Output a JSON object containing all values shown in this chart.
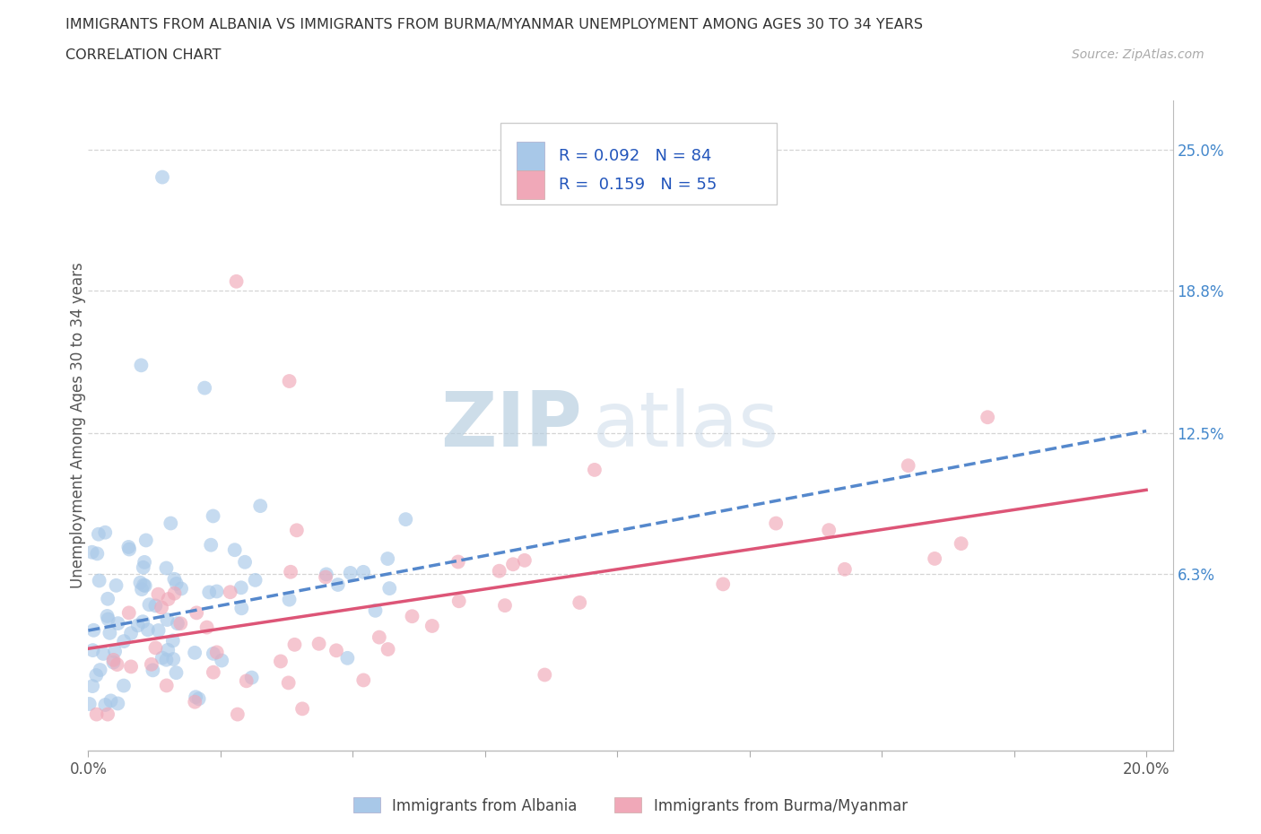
{
  "title_line1": "IMMIGRANTS FROM ALBANIA VS IMMIGRANTS FROM BURMA/MYANMAR UNEMPLOYMENT AMONG AGES 30 TO 34 YEARS",
  "title_line2": "CORRELATION CHART",
  "source_text": "Source: ZipAtlas.com",
  "ylabel": "Unemployment Among Ages 30 to 34 years",
  "xlim": [
    0.0,
    0.205
  ],
  "ylim": [
    -0.015,
    0.272
  ],
  "xtick_values": [
    0.0,
    0.025,
    0.05,
    0.075,
    0.1,
    0.125,
    0.15,
    0.175,
    0.2
  ],
  "ytick_right_values": [
    0.063,
    0.125,
    0.188,
    0.25
  ],
  "ytick_right_labels": [
    "6.3%",
    "12.5%",
    "18.8%",
    "25.0%"
  ],
  "albania_color": "#a8c8e8",
  "burma_color": "#f0a8b8",
  "albania_trend_color": "#5588cc",
  "burma_trend_color": "#dd5577",
  "albania_R": 0.092,
  "albania_N": 84,
  "burma_R": 0.159,
  "burma_N": 55,
  "watermark_zip": "ZIP",
  "watermark_atlas": "atlas",
  "watermark_color_zip": "#c5d8ea",
  "watermark_color_atlas": "#c5d8ea",
  "legend_label_albania": "Immigrants from Albania",
  "legend_label_burma": "Immigrants from Burma/Myanmar",
  "alb_trend_x0": 0.0,
  "alb_trend_x1": 0.2,
  "alb_trend_y0": 0.038,
  "alb_trend_y1": 0.126,
  "bur_trend_x0": 0.0,
  "bur_trend_x1": 0.2,
  "bur_trend_y0": 0.03,
  "bur_trend_y1": 0.1
}
